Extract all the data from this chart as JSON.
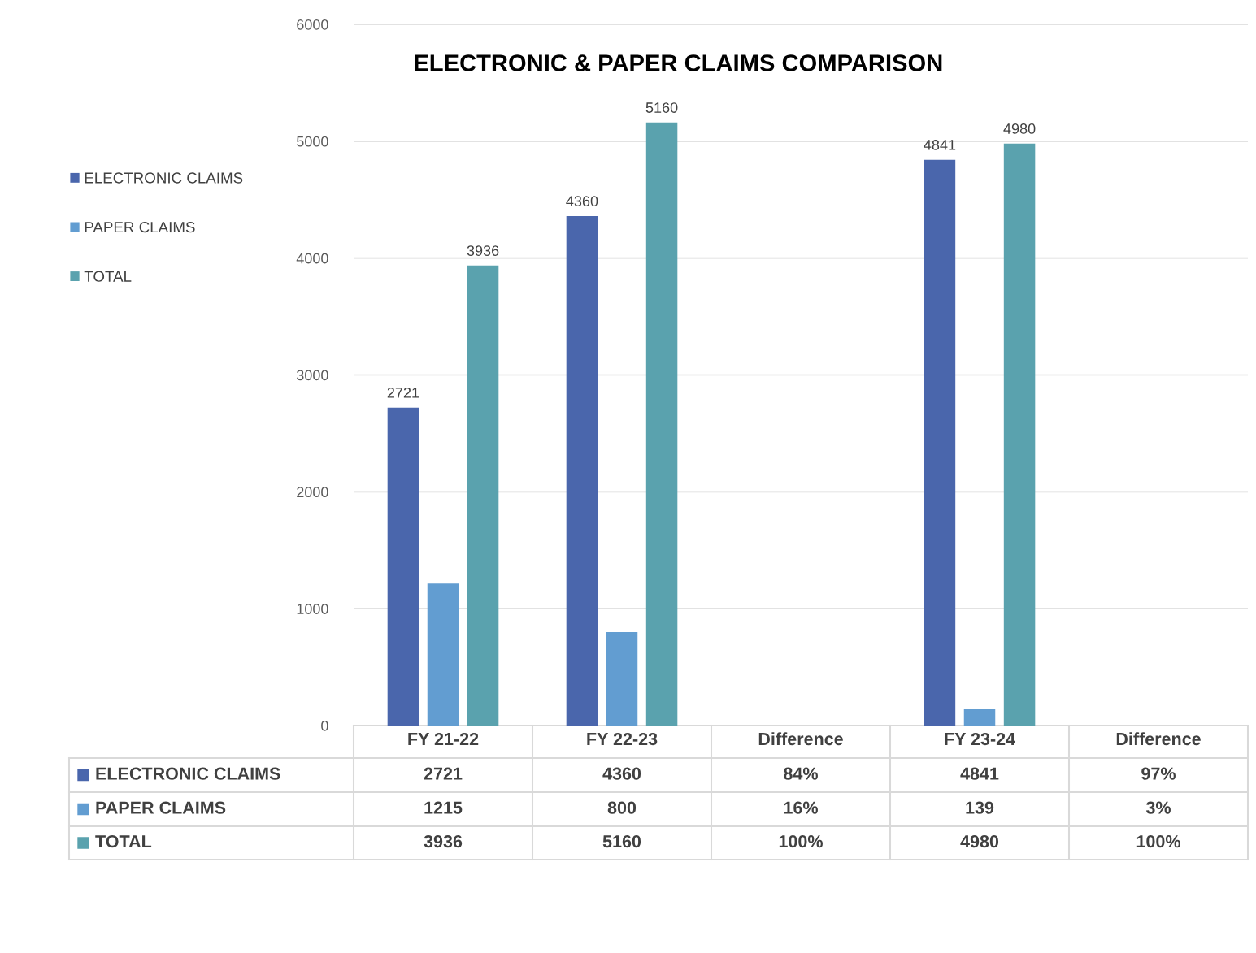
{
  "chart_data": {
    "type": "bar",
    "title": "ELECTRONIC & PAPER CLAIMS COMPARISON",
    "categories": [
      "FY 21-22",
      "FY 22-23",
      "Difference",
      "FY 23-24",
      "Difference"
    ],
    "series": [
      {
        "name": "ELECTRONIC CLAIMS",
        "color": "#4a66ac",
        "values": [
          2721,
          4360,
          null,
          4841,
          null
        ],
        "value_labels": [
          "2721",
          "4360",
          null,
          "4841",
          null
        ]
      },
      {
        "name": "PAPER CLAIMS",
        "color": "#629dd1",
        "values": [
          1215,
          800,
          null,
          139,
          null
        ]
      },
      {
        "name": "TOTAL",
        "color": "#5aa2ae",
        "values": [
          3936,
          5160,
          null,
          4980,
          null
        ],
        "value_labels": [
          "3936",
          "5160",
          null,
          "4980",
          null
        ]
      }
    ],
    "annotations": [
      "2721",
      "4360",
      "84%",
      "4841",
      "97%",
      "1215",
      "800",
      "16%",
      "139",
      "3%",
      "3936",
      "5160",
      "100%",
      "4980",
      "100%"
    ],
    "ylim": [
      0,
      6000
    ],
    "yticks": [
      0,
      1000,
      2000,
      3000,
      4000,
      5000,
      6000
    ],
    "grid": "y",
    "legend": "left"
  }
}
